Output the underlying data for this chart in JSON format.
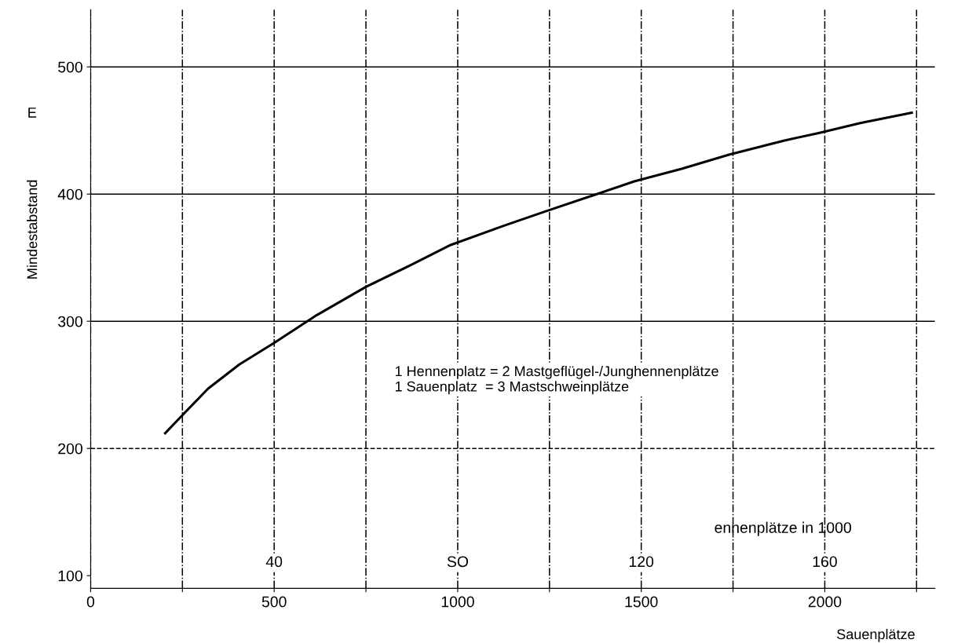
{
  "chart_data": {
    "type": "line",
    "xlabel": "Sauenplätze",
    "ylabel": "Mindestabstand",
    "x2label": "ennenplätze in 1000",
    "annotations": [
      "E",
      "1 Hennenplatz = 2 Mastgeflügel-/Junghennenplätze\n1 Sauenplatz  = 3 Mastschweinplätze"
    ],
    "series": [
      {
        "color": "#000000",
        "x": [
          203,
          246,
          320,
          405,
          500,
          617,
          750,
          871,
          981,
          1125,
          1235,
          1379,
          1481,
          1612,
          1739,
          1888,
          1983,
          2099,
          2237
        ],
        "values": [
          212,
          225,
          247,
          266,
          283,
          305,
          327,
          344,
          360,
          375,
          386,
          400,
          410,
          420,
          431,
          442,
          448,
          456,
          464
        ]
      }
    ],
    "xlim": [
      0,
      2300
    ],
    "ylim": [
      90,
      545
    ],
    "xticks": [
      0,
      {
        "value": 250,
        "label": null
      },
      500,
      {
        "value": 750,
        "label": null
      },
      1000,
      {
        "value": 1250,
        "label": null
      },
      1500,
      {
        "value": 1750,
        "label": null
      },
      2000,
      {
        "value": 2250,
        "label": null
      }
    ],
    "yticks": [
      100,
      200,
      300,
      400,
      500
    ],
    "x2lim": [
      0,
      184
    ],
    "x2ticks": [
      40,
      {
        "value": 80,
        "label": "SO"
      },
      120,
      160
    ],
    "ref_lines": [
      {
        "axis": "y",
        "value": 200,
        "line_style": "dashed"
      },
      {
        "axis": "y",
        "value": 300
      },
      {
        "axis": "y",
        "value": 400
      },
      {
        "axis": "y",
        "value": 500
      }
    ],
    "grid": "x",
    "marker": "none",
    "line_style": "solid",
    "legend": false
  }
}
